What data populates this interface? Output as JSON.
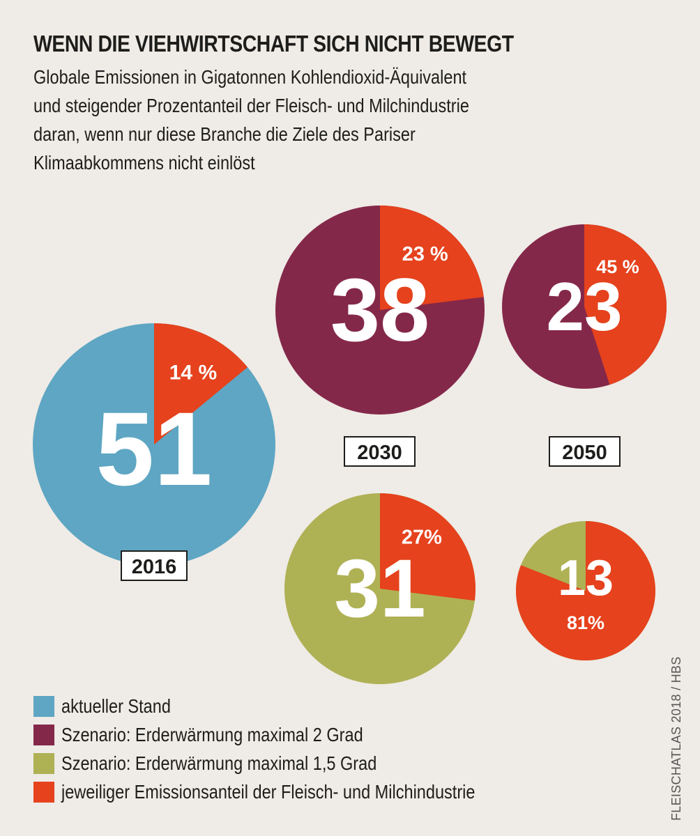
{
  "header": {
    "title": "WENN DIE VIEHWIRTSCHAFT SICH NICHT BEWEGT",
    "subtitle_lines": [
      "Globale Emissionen in Gigatonnen Kohlendioxid-Äquivalent",
      "und steigender Prozentanteil der Fleisch- und Milchindustrie",
      "daran, wenn nur diese Branche die Ziele des Pariser",
      "Klimaabkommens nicht einlöst"
    ]
  },
  "colors": {
    "current": "#5ea6c3",
    "scenario_2": "#84284a",
    "scenario_1_5": "#afb155",
    "meat_dairy": "#e5421d",
    "background": "#efebe6"
  },
  "chart_data": {
    "type": "pie",
    "title": "WENN DIE VIEHWIRTSCHAFT SICH NICHT BEWEGT",
    "unit": "Gigatonnen CO2-Äquivalent",
    "pies": [
      {
        "id": "2016",
        "year": "2016",
        "scenario": "aktueller Stand",
        "total": 51,
        "total_label": "51",
        "share_pct": 14,
        "share_label": "14 %",
        "base_color_key": "current"
      },
      {
        "id": "2030-2",
        "year": "2030",
        "scenario": "Szenario: Erderwärmung maximal 2 Grad",
        "total": 38,
        "total_label": "38",
        "share_pct": 23,
        "share_label": "23 %",
        "base_color_key": "scenario_2"
      },
      {
        "id": "2050-2",
        "year": "2050",
        "scenario": "Szenario: Erderwärmung maximal 2 Grad",
        "total": 23,
        "total_label": "23",
        "share_pct": 45,
        "share_label": "45 %",
        "base_color_key": "scenario_2"
      },
      {
        "id": "2030-1.5",
        "year": "2030",
        "scenario": "Szenario: Erderwärmung maximal 1,5 Grad",
        "total": 31,
        "total_label": "31",
        "share_pct": 27,
        "share_label": "27%",
        "base_color_key": "scenario_1_5"
      },
      {
        "id": "2050-1.5",
        "year": "2050",
        "scenario": "Szenario: Erderwärmung maximal 1,5 Grad",
        "total": 13,
        "total_label": "13",
        "share_pct": 81,
        "share_label": "81%",
        "base_color_key": "scenario_1_5"
      }
    ],
    "year_labels": [
      "2016",
      "2030",
      "2050"
    ],
    "legend": [
      {
        "label": "aktueller Stand",
        "color_key": "current"
      },
      {
        "label": "Szenario: Erderwärmung maximal 2 Grad",
        "color_key": "scenario_2"
      },
      {
        "label": "Szenario: Erderwärmung maximal 1,5 Grad",
        "color_key": "scenario_1_5"
      },
      {
        "label": "jeweiliger Emissionsanteil der Fleisch- und Milchindustrie",
        "color_key": "meat_dairy"
      }
    ],
    "legend_position": "bottom-left"
  },
  "credit": "FLEISCHATLAS 2018 / HBS"
}
